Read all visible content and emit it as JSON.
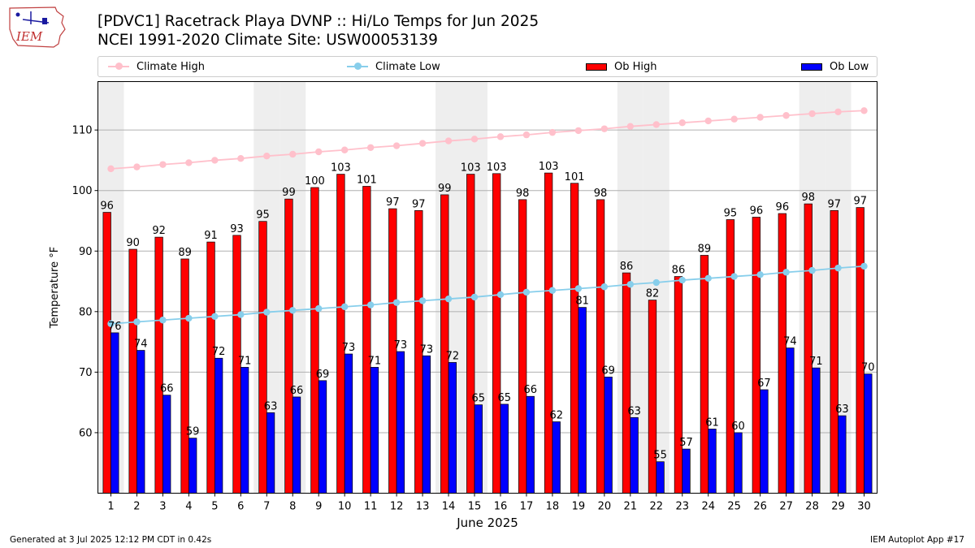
{
  "header": {
    "title_line1": "[PDVC1] Racetrack Playa DVNP :: Hi/Lo Temps for Jun 2025",
    "title_line2": "NCEI 1991-2020 Climate Site: USW00053139"
  },
  "logo": {
    "text": "IEM"
  },
  "legend": {
    "placement": "top, above plot, single row",
    "items": [
      {
        "label": "Climate High",
        "kind": "line",
        "color": "#ffc0cb"
      },
      {
        "label": "Climate Low",
        "kind": "line",
        "color": "#87ceeb"
      },
      {
        "label": "Ob High",
        "kind": "bar",
        "color": "#ff0000"
      },
      {
        "label": "Ob Low",
        "kind": "bar",
        "color": "#0000ff"
      }
    ]
  },
  "footer": {
    "left": "Generated at 3 Jul 2025 12:12 PM CDT in 0.42s",
    "right": "IEM Autoplot App #17"
  },
  "chart_data": {
    "type": "bar",
    "xlabel": "June 2025",
    "ylabel": "Temperature °F",
    "xlim": [
      0.5,
      30.5
    ],
    "ylim": [
      50,
      118
    ],
    "yticks": [
      60,
      70,
      80,
      90,
      100,
      110
    ],
    "grid": "horizontal",
    "weekend_shading": [
      1,
      7,
      8,
      14,
      15,
      21,
      22,
      28,
      29
    ],
    "categories": [
      1,
      2,
      3,
      4,
      5,
      6,
      7,
      8,
      9,
      10,
      11,
      12,
      13,
      14,
      15,
      16,
      17,
      18,
      19,
      20,
      21,
      22,
      23,
      24,
      25,
      26,
      27,
      28,
      29,
      30
    ],
    "series": [
      {
        "name": "Ob High",
        "kind": "bar",
        "color": "#ff0000",
        "values": [
          96.4,
          90.3,
          92.3,
          88.7,
          91.5,
          92.6,
          94.9,
          98.6,
          100.5,
          102.7,
          100.7,
          97.0,
          96.7,
          99.3,
          102.7,
          102.8,
          98.5,
          102.9,
          101.2,
          98.5,
          86.4,
          81.9,
          85.8,
          89.3,
          95.2,
          95.6,
          96.2,
          97.8,
          96.7,
          97.2
        ],
        "labels": [
          "96",
          "90",
          "92",
          "89",
          "91",
          "93",
          "95",
          "99",
          "100",
          "103",
          "101",
          "97",
          "97",
          "99",
          "103",
          "103",
          "98",
          "103",
          "101",
          "98",
          "86",
          "82",
          "86",
          "89",
          "95",
          "96",
          "96",
          "98",
          "97",
          "97"
        ]
      },
      {
        "name": "Ob Low",
        "kind": "bar",
        "color": "#0000ff",
        "values": [
          76.5,
          73.6,
          66.2,
          59.1,
          72.3,
          70.8,
          63.3,
          65.9,
          68.6,
          73.0,
          70.8,
          73.4,
          72.7,
          71.6,
          64.6,
          64.7,
          66.0,
          61.8,
          80.7,
          69.2,
          62.5,
          55.2,
          57.3,
          60.6,
          60.0,
          67.1,
          74.0,
          70.7,
          62.8,
          69.7
        ],
        "labels": [
          "76",
          "74",
          "66",
          "59",
          "72",
          "71",
          "63",
          "66",
          "69",
          "73",
          "71",
          "73",
          "73",
          "72",
          "65",
          "65",
          "66",
          "62",
          "81",
          "69",
          "63",
          "55",
          "57",
          "61",
          "60",
          "67",
          "74",
          "71",
          "63",
          "70"
        ]
      },
      {
        "name": "Climate High",
        "kind": "line",
        "color": "#ffc0cb",
        "values": [
          103.6,
          103.9,
          104.3,
          104.6,
          105.0,
          105.3,
          105.7,
          106.0,
          106.4,
          106.7,
          107.1,
          107.4,
          107.8,
          108.2,
          108.5,
          108.9,
          109.2,
          109.6,
          109.9,
          110.2,
          110.6,
          110.9,
          111.2,
          111.5,
          111.8,
          112.1,
          112.4,
          112.7,
          113.0,
          113.2
        ]
      },
      {
        "name": "Climate Low",
        "kind": "line",
        "color": "#87ceeb",
        "values": [
          78.0,
          78.3,
          78.6,
          78.9,
          79.2,
          79.5,
          79.9,
          80.2,
          80.5,
          80.8,
          81.1,
          81.5,
          81.8,
          82.1,
          82.4,
          82.8,
          83.2,
          83.5,
          83.8,
          84.1,
          84.5,
          84.8,
          85.2,
          85.5,
          85.8,
          86.1,
          86.5,
          86.8,
          87.2,
          87.5
        ]
      }
    ]
  }
}
